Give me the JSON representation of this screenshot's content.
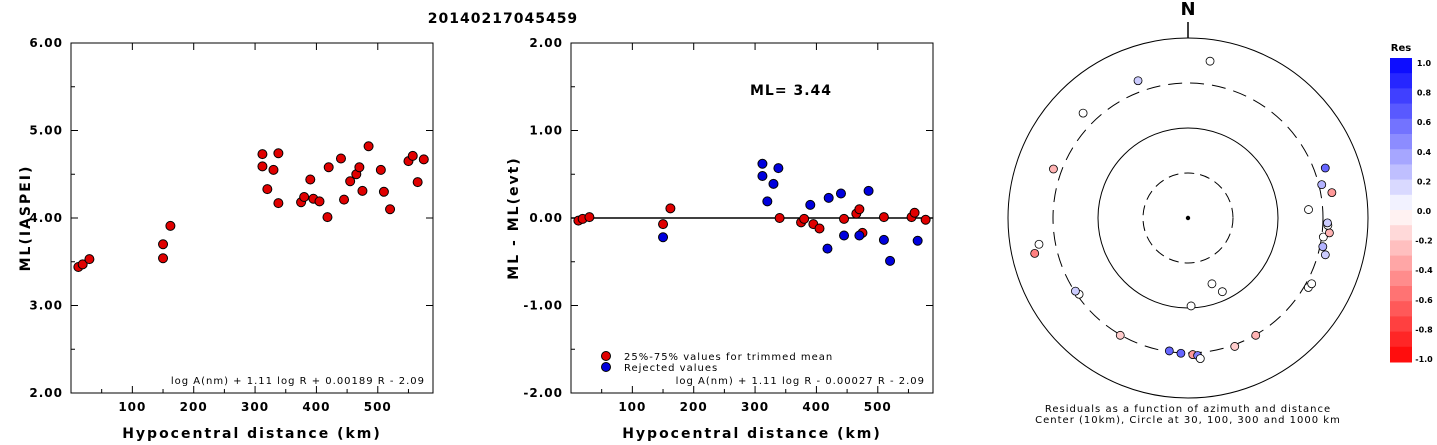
{
  "header": {
    "title": "20140217045459"
  },
  "colors": {
    "trimmed": "#e00000",
    "rejected": "#0000dd",
    "axis": "#000000"
  },
  "chart_data": [
    {
      "type": "scatter",
      "id": "ml-vs-distance",
      "ylabel": "ML(IASPEI)",
      "xlabel": "Hypocentral distance (km)",
      "xlim": [
        0,
        590
      ],
      "ylim": [
        2.0,
        6.0
      ],
      "x_ticks": [
        "100",
        "200",
        "300",
        "400",
        "500"
      ],
      "y_ticks": [
        "6.00",
        "5.00",
        "4.00",
        "3.00",
        "2.00"
      ],
      "formula": "log A(nm) + 1.11 log R + 0.00189 R - 2.09",
      "points": [
        [
          12,
          3.44
        ],
        [
          19,
          3.47
        ],
        [
          30,
          3.53
        ],
        [
          150,
          3.7
        ],
        [
          150,
          3.54
        ],
        [
          162,
          3.91
        ],
        [
          312,
          4.73
        ],
        [
          312,
          4.59
        ],
        [
          320,
          4.33
        ],
        [
          330,
          4.55
        ],
        [
          338,
          4.74
        ],
        [
          338,
          4.17
        ],
        [
          375,
          4.18
        ],
        [
          380,
          4.24
        ],
        [
          390,
          4.44
        ],
        [
          395,
          4.22
        ],
        [
          405,
          4.19
        ],
        [
          418,
          4.01
        ],
        [
          420,
          4.58
        ],
        [
          440,
          4.68
        ],
        [
          445,
          4.21
        ],
        [
          455,
          4.42
        ],
        [
          465,
          4.5
        ],
        [
          470,
          4.58
        ],
        [
          475,
          4.31
        ],
        [
          485,
          4.82
        ],
        [
          505,
          4.55
        ],
        [
          510,
          4.3
        ],
        [
          520,
          4.1
        ],
        [
          550,
          4.65
        ],
        [
          557,
          4.71
        ],
        [
          565,
          4.41
        ],
        [
          575,
          4.67
        ]
      ]
    },
    {
      "type": "scatter",
      "id": "residual-vs-distance",
      "ylabel": "ML - ML(evt)",
      "xlabel": "Hypocentral distance (km)",
      "xlim": [
        0,
        590
      ],
      "ylim": [
        -2.0,
        2.0
      ],
      "x_ticks": [
        "100",
        "200",
        "300",
        "400",
        "500"
      ],
      "y_ticks": [
        "2.00",
        "1.00",
        "0.00",
        "-1.00",
        "-2.00"
      ],
      "annotation": "ML= 3.44",
      "formula": "log A(nm) + 1.11 log R - 0.00027 R - 2.09",
      "legend": [
        {
          "label": "25%-75% values for trimmed mean",
          "color": "#e00000"
        },
        {
          "label": "Rejected values",
          "color": "#0000dd"
        }
      ],
      "series": [
        {
          "name": "25%-75% values for trimmed mean",
          "color": "#e00000",
          "points": [
            [
              12,
              -0.03
            ],
            [
              19,
              -0.01
            ],
            [
              30,
              0.01
            ],
            [
              150,
              -0.07
            ],
            [
              162,
              0.11
            ],
            [
              340,
              0.0
            ],
            [
              375,
              -0.05
            ],
            [
              380,
              -0.01
            ],
            [
              395,
              -0.07
            ],
            [
              405,
              -0.12
            ],
            [
              445,
              -0.01
            ],
            [
              465,
              0.05
            ],
            [
              470,
              0.1
            ],
            [
              475,
              -0.17
            ],
            [
              510,
              0.01
            ],
            [
              555,
              0.01
            ],
            [
              560,
              0.06
            ],
            [
              578,
              -0.02
            ]
          ]
        },
        {
          "name": "Rejected values",
          "color": "#0000dd",
          "points": [
            [
              150,
              -0.22
            ],
            [
              312,
              0.62
            ],
            [
              312,
              0.48
            ],
            [
              320,
              0.19
            ],
            [
              330,
              0.39
            ],
            [
              338,
              0.57
            ],
            [
              390,
              0.15
            ],
            [
              418,
              -0.35
            ],
            [
              420,
              0.23
            ],
            [
              440,
              0.28
            ],
            [
              445,
              -0.2
            ],
            [
              470,
              -0.2
            ],
            [
              485,
              0.31
            ],
            [
              510,
              -0.25
            ],
            [
              520,
              -0.49
            ],
            [
              565,
              -0.26
            ]
          ]
        }
      ]
    },
    {
      "type": "scatter",
      "id": "azimuth-polar",
      "north_label": "N",
      "caption_line1": "Residuals as a function of azimuth and distance",
      "caption_line2": "Center (10km), Circle at 30, 100, 300 and 1000 km",
      "colorbar": {
        "title": "Res",
        "labels": [
          "1.0",
          "0.8",
          "0.6",
          "0.4",
          "0.2",
          "0.0",
          "-0.2",
          "-0.4",
          "-0.6",
          "-0.8",
          "-1.0"
        ]
      },
      "stations": [
        {
          "azimuth": 8,
          "distance_km": 575,
          "residual": 0.0
        },
        {
          "azimuth": -20,
          "distance_km": 420,
          "residual": 0.2
        },
        {
          "azimuth": -45,
          "distance_km": 445,
          "residual": 0.0
        },
        {
          "azimuth": -70,
          "distance_km": 390,
          "residual": -0.3
        },
        {
          "azimuth": -100,
          "distance_km": 480,
          "residual": 0.0
        },
        {
          "azimuth": -103,
          "distance_km": 560,
          "residual": -0.5
        },
        {
          "azimuth": -125,
          "distance_km": 300,
          "residual": 0.0
        },
        {
          "azimuth": -123,
          "distance_km": 310,
          "residual": 0.2
        },
        {
          "azimuth": -150,
          "distance_km": 320,
          "residual": -0.2
        },
        {
          "azimuth": -172,
          "distance_km": 310,
          "residual": 0.6
        },
        {
          "azimuth": -177,
          "distance_km": 320,
          "residual": 0.6
        },
        {
          "azimuth": 178,
          "distance_km": 330,
          "residual": -0.4
        },
        {
          "azimuth": 176,
          "distance_km": 340,
          "residual": 0.5
        },
        {
          "azimuth": 175,
          "distance_km": 370,
          "residual": 0.0
        },
        {
          "azimuth": 160,
          "distance_km": 330,
          "residual": -0.2
        },
        {
          "azimuth": 150,
          "distance_km": 320,
          "residual": -0.3
        },
        {
          "azimuth": 120,
          "distance_km": 350,
          "residual": 0.0
        },
        {
          "azimuth": 118,
          "distance_km": 360,
          "residual": 0.0
        },
        {
          "azimuth": 105,
          "distance_km": 380,
          "residual": 0.2
        },
        {
          "azimuth": 102,
          "distance_km": 340,
          "residual": 0.3
        },
        {
          "azimuth": 98,
          "distance_km": 330,
          "residual": 0.0
        },
        {
          "azimuth": 96,
          "distance_km": 380,
          "residual": -0.3
        },
        {
          "azimuth": 93,
          "distance_km": 360,
          "residual": 0.0
        },
        {
          "azimuth": 92,
          "distance_km": 355,
          "residual": 0.2
        },
        {
          "azimuth": 80,
          "distance_km": 420,
          "residual": -0.4
        },
        {
          "azimuth": 76,
          "distance_km": 340,
          "residual": 0.3
        },
        {
          "azimuth": 70,
          "distance_km": 420,
          "residual": 0.6
        },
        {
          "azimuth": 86,
          "distance_km": 220,
          "residual": 0.0
        },
        {
          "azimuth": 160,
          "distance_km": 60,
          "residual": 0.0
        },
        {
          "azimuth": 155,
          "distance_km": 80,
          "residual": 0.0
        },
        {
          "azimuth": 178,
          "distance_km": 95,
          "residual": 0.0
        }
      ]
    }
  ]
}
